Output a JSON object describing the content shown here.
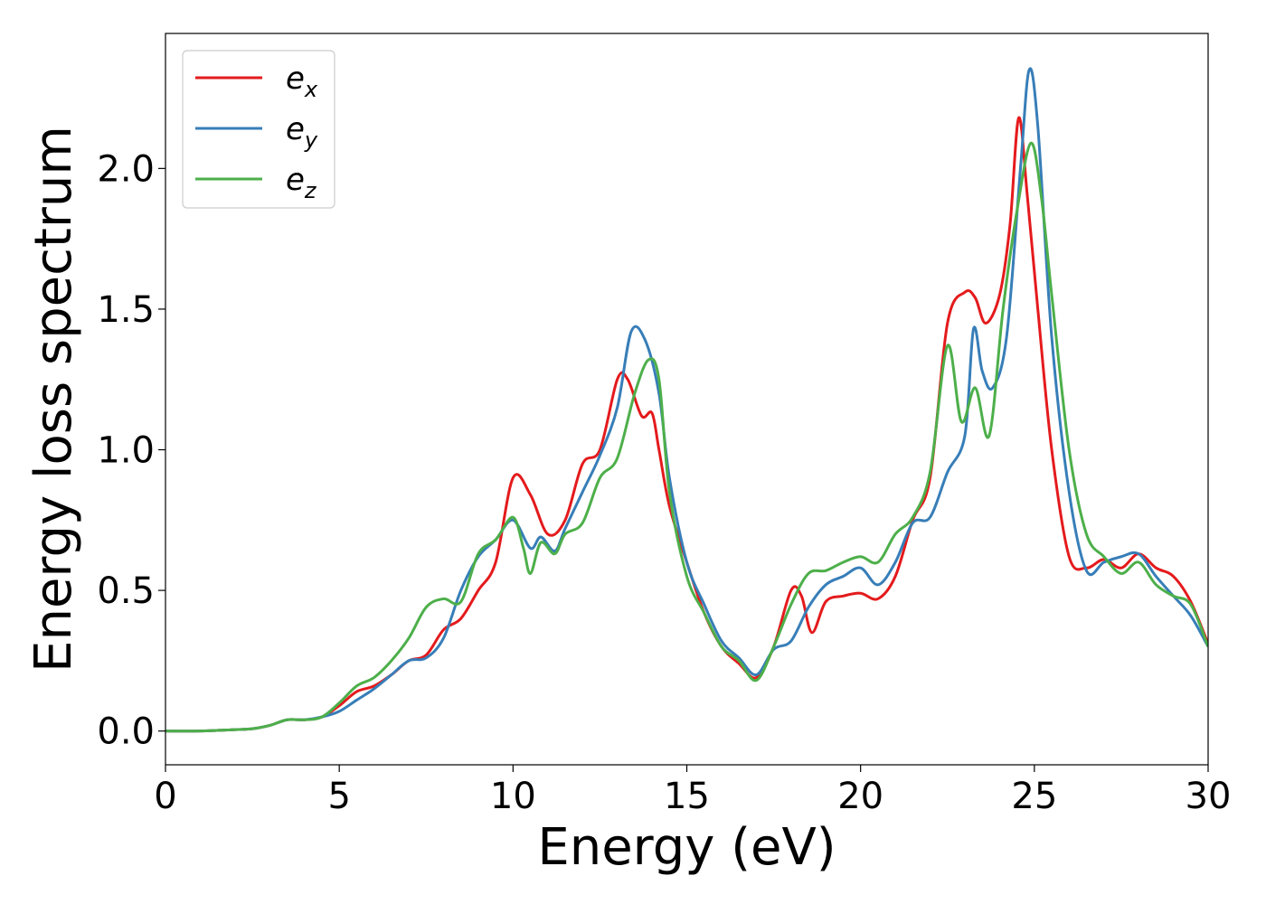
{
  "chart_data": {
    "type": "line",
    "title": "",
    "xlabel": "Energy (eV)",
    "ylabel": "Energy loss spectrum",
    "xlim": [
      0,
      30
    ],
    "ylim": [
      -0.12,
      2.48
    ],
    "xticks": [
      0,
      5,
      10,
      15,
      20,
      25,
      30
    ],
    "xtick_labels": [
      "0",
      "5",
      "10",
      "15",
      "20",
      "25",
      "30"
    ],
    "yticks": [
      0.0,
      0.5,
      1.0,
      1.5,
      2.0
    ],
    "ytick_labels": [
      "0.0",
      "0.5",
      "1.0",
      "1.5",
      "2.0"
    ],
    "grid": false,
    "legend_position": "top-left",
    "series": [
      {
        "name": "e_x",
        "label_base": "e",
        "label_sub": "x",
        "color": "#e41a1c",
        "x": [
          0,
          1,
          2,
          2.5,
          3,
          3.5,
          4,
          4.5,
          5,
          5.5,
          6,
          6.5,
          7,
          7.5,
          8,
          8.5,
          9,
          9.5,
          10,
          10.5,
          11,
          11.5,
          12,
          12.5,
          13,
          13.3,
          13.7,
          14,
          14.2,
          14.5,
          15,
          15.5,
          16,
          16.5,
          17,
          17.5,
          18,
          18.3,
          18.6,
          19,
          19.5,
          20,
          20.5,
          21,
          21.5,
          22,
          22.5,
          23,
          23.3,
          23.6,
          24,
          24.3,
          24.55,
          24.8,
          25.1,
          25.5,
          26,
          26.5,
          27,
          27.5,
          28,
          28.5,
          29,
          29.5,
          30
        ],
        "values": [
          0.0,
          0.0,
          0.005,
          0.008,
          0.02,
          0.04,
          0.04,
          0.05,
          0.09,
          0.14,
          0.16,
          0.2,
          0.25,
          0.27,
          0.36,
          0.4,
          0.5,
          0.6,
          0.9,
          0.84,
          0.7,
          0.75,
          0.95,
          1.0,
          1.25,
          1.25,
          1.12,
          1.13,
          1.0,
          0.8,
          0.6,
          0.42,
          0.3,
          0.24,
          0.19,
          0.3,
          0.5,
          0.48,
          0.35,
          0.46,
          0.48,
          0.49,
          0.47,
          0.55,
          0.75,
          0.9,
          1.45,
          1.56,
          1.54,
          1.45,
          1.55,
          1.8,
          2.18,
          1.9,
          1.5,
          1.0,
          0.62,
          0.58,
          0.61,
          0.58,
          0.63,
          0.58,
          0.55,
          0.46,
          0.31
        ]
      },
      {
        "name": "e_y",
        "label_base": "e",
        "label_sub": "y",
        "color": "#377eb8",
        "x": [
          0,
          1,
          2,
          2.5,
          3,
          3.5,
          4,
          4.5,
          5,
          5.5,
          6,
          6.5,
          7,
          7.5,
          8,
          8.5,
          9,
          9.5,
          10,
          10.5,
          10.8,
          11.2,
          11.5,
          12,
          12.5,
          13,
          13.4,
          13.8,
          14.2,
          14.5,
          15,
          15.5,
          16,
          16.5,
          17,
          17.5,
          18,
          18.5,
          19,
          19.5,
          20,
          20.5,
          21,
          21.5,
          22,
          22.5,
          23,
          23.25,
          23.5,
          23.8,
          24.2,
          24.6,
          24.85,
          25.1,
          25.5,
          26,
          26.5,
          27,
          27.5,
          28,
          28.5,
          29,
          29.5,
          30
        ],
        "values": [
          0.0,
          0.0,
          0.005,
          0.008,
          0.02,
          0.04,
          0.04,
          0.05,
          0.07,
          0.11,
          0.15,
          0.2,
          0.25,
          0.26,
          0.33,
          0.5,
          0.62,
          0.68,
          0.75,
          0.65,
          0.69,
          0.64,
          0.72,
          0.85,
          0.98,
          1.15,
          1.42,
          1.39,
          1.2,
          0.9,
          0.6,
          0.45,
          0.32,
          0.26,
          0.2,
          0.29,
          0.32,
          0.44,
          0.52,
          0.55,
          0.58,
          0.52,
          0.6,
          0.74,
          0.76,
          0.92,
          1.05,
          1.43,
          1.28,
          1.22,
          1.4,
          2.0,
          2.35,
          2.15,
          1.4,
          0.85,
          0.57,
          0.6,
          0.62,
          0.63,
          0.55,
          0.48,
          0.41,
          0.3
        ]
      },
      {
        "name": "e_z",
        "label_base": "e",
        "label_sub": "z",
        "color": "#4daf4a",
        "x": [
          0,
          1,
          2,
          2.5,
          3,
          3.5,
          4,
          4.5,
          5,
          5.5,
          6,
          6.5,
          7,
          7.5,
          8,
          8.5,
          9,
          9.5,
          10,
          10.3,
          10.5,
          10.8,
          11.2,
          11.5,
          12,
          12.5,
          13,
          13.5,
          13.9,
          14.2,
          14.5,
          15,
          15.5,
          16,
          16.5,
          17,
          17.5,
          18,
          18.5,
          19,
          19.5,
          20,
          20.5,
          21,
          21.5,
          22,
          22.5,
          22.9,
          23.3,
          23.7,
          24.1,
          24.5,
          24.9,
          25.2,
          25.5,
          26,
          26.5,
          27,
          27.5,
          28,
          28.5,
          29,
          29.5,
          30
        ],
        "values": [
          0.0,
          0.0,
          0.005,
          0.008,
          0.02,
          0.04,
          0.04,
          0.05,
          0.1,
          0.16,
          0.19,
          0.25,
          0.33,
          0.44,
          0.47,
          0.46,
          0.63,
          0.68,
          0.76,
          0.65,
          0.56,
          0.67,
          0.63,
          0.7,
          0.74,
          0.9,
          0.97,
          1.2,
          1.32,
          1.25,
          0.85,
          0.55,
          0.42,
          0.3,
          0.25,
          0.18,
          0.3,
          0.45,
          0.56,
          0.57,
          0.6,
          0.62,
          0.6,
          0.7,
          0.76,
          0.92,
          1.37,
          1.1,
          1.22,
          1.05,
          1.5,
          1.85,
          2.09,
          1.9,
          1.55,
          1.0,
          0.7,
          0.62,
          0.56,
          0.6,
          0.52,
          0.48,
          0.45,
          0.3
        ]
      }
    ]
  }
}
